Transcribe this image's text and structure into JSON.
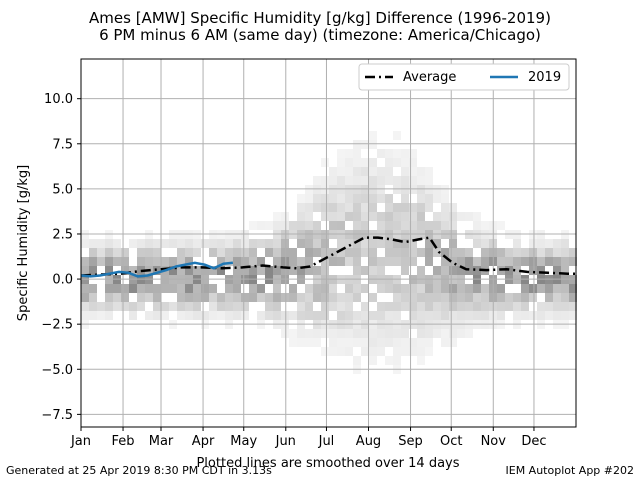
{
  "chart_data": {
    "type": "line",
    "title_line1": "Ames [AMW] Specific Humidity [g/kg] Difference (1996-2019)",
    "title_line2": "6 PM minus 6 AM (same day) (timezone: America/Chicago)",
    "ylabel": "Specific Humidity [g/kg]",
    "xlabel": "Plotted lines are smoothed over 14 days",
    "ylim": [
      -8.2,
      12.2
    ],
    "xlim": [
      1,
      366
    ],
    "yticks": [
      -7.5,
      -5.0,
      -2.5,
      0.0,
      2.5,
      5.0,
      7.5,
      10.0
    ],
    "ytick_labels": [
      "−7.5",
      "−5.0",
      "−2.5",
      "0.0",
      "2.5",
      "5.0",
      "7.5",
      "10.0"
    ],
    "xticks": [
      1,
      32,
      60,
      91,
      121,
      152,
      182,
      213,
      244,
      274,
      305,
      335
    ],
    "xtick_labels": [
      "Jan",
      "Feb",
      "Mar",
      "Apr",
      "May",
      "Jun",
      "Jul",
      "Aug",
      "Sep",
      "Oct",
      "Nov",
      "Dec"
    ],
    "grid": true,
    "legend_position": "top-right",
    "series": [
      {
        "name": "Average",
        "style": "dashdot",
        "color": "#000000",
        "x": [
          1,
          15,
          30,
          45,
          60,
          75,
          90,
          105,
          120,
          135,
          150,
          160,
          170,
          180,
          190,
          200,
          210,
          220,
          230,
          240,
          250,
          258,
          265,
          275,
          285,
          300,
          315,
          330,
          345,
          360,
          366
        ],
        "values": [
          0.2,
          0.25,
          0.3,
          0.45,
          0.55,
          0.65,
          0.65,
          0.6,
          0.65,
          0.75,
          0.65,
          0.6,
          0.7,
          1.1,
          1.5,
          1.9,
          2.3,
          2.3,
          2.2,
          2.05,
          2.2,
          2.3,
          1.5,
          0.9,
          0.55,
          0.5,
          0.55,
          0.4,
          0.35,
          0.3,
          0.3
        ]
      },
      {
        "name": "2019",
        "style": "solid",
        "color": "#1f77b4",
        "x": [
          1,
          8,
          15,
          22,
          29,
          36,
          43,
          50,
          57,
          64,
          71,
          78,
          85,
          92,
          99,
          106,
          113
        ],
        "values": [
          0.2,
          0.15,
          0.2,
          0.3,
          0.4,
          0.35,
          0.15,
          0.2,
          0.35,
          0.5,
          0.7,
          0.8,
          0.9,
          0.8,
          0.6,
          0.85,
          0.9
        ]
      }
    ],
    "background": "2D histogram (grey shading) of daily differences, densest near 0 and in summer spanning about -3 to 6"
  },
  "footer": {
    "left": "Generated at 25 Apr 2019 8:30 PM CDT in 3.13s",
    "right": "IEM Autoplot App #202"
  }
}
